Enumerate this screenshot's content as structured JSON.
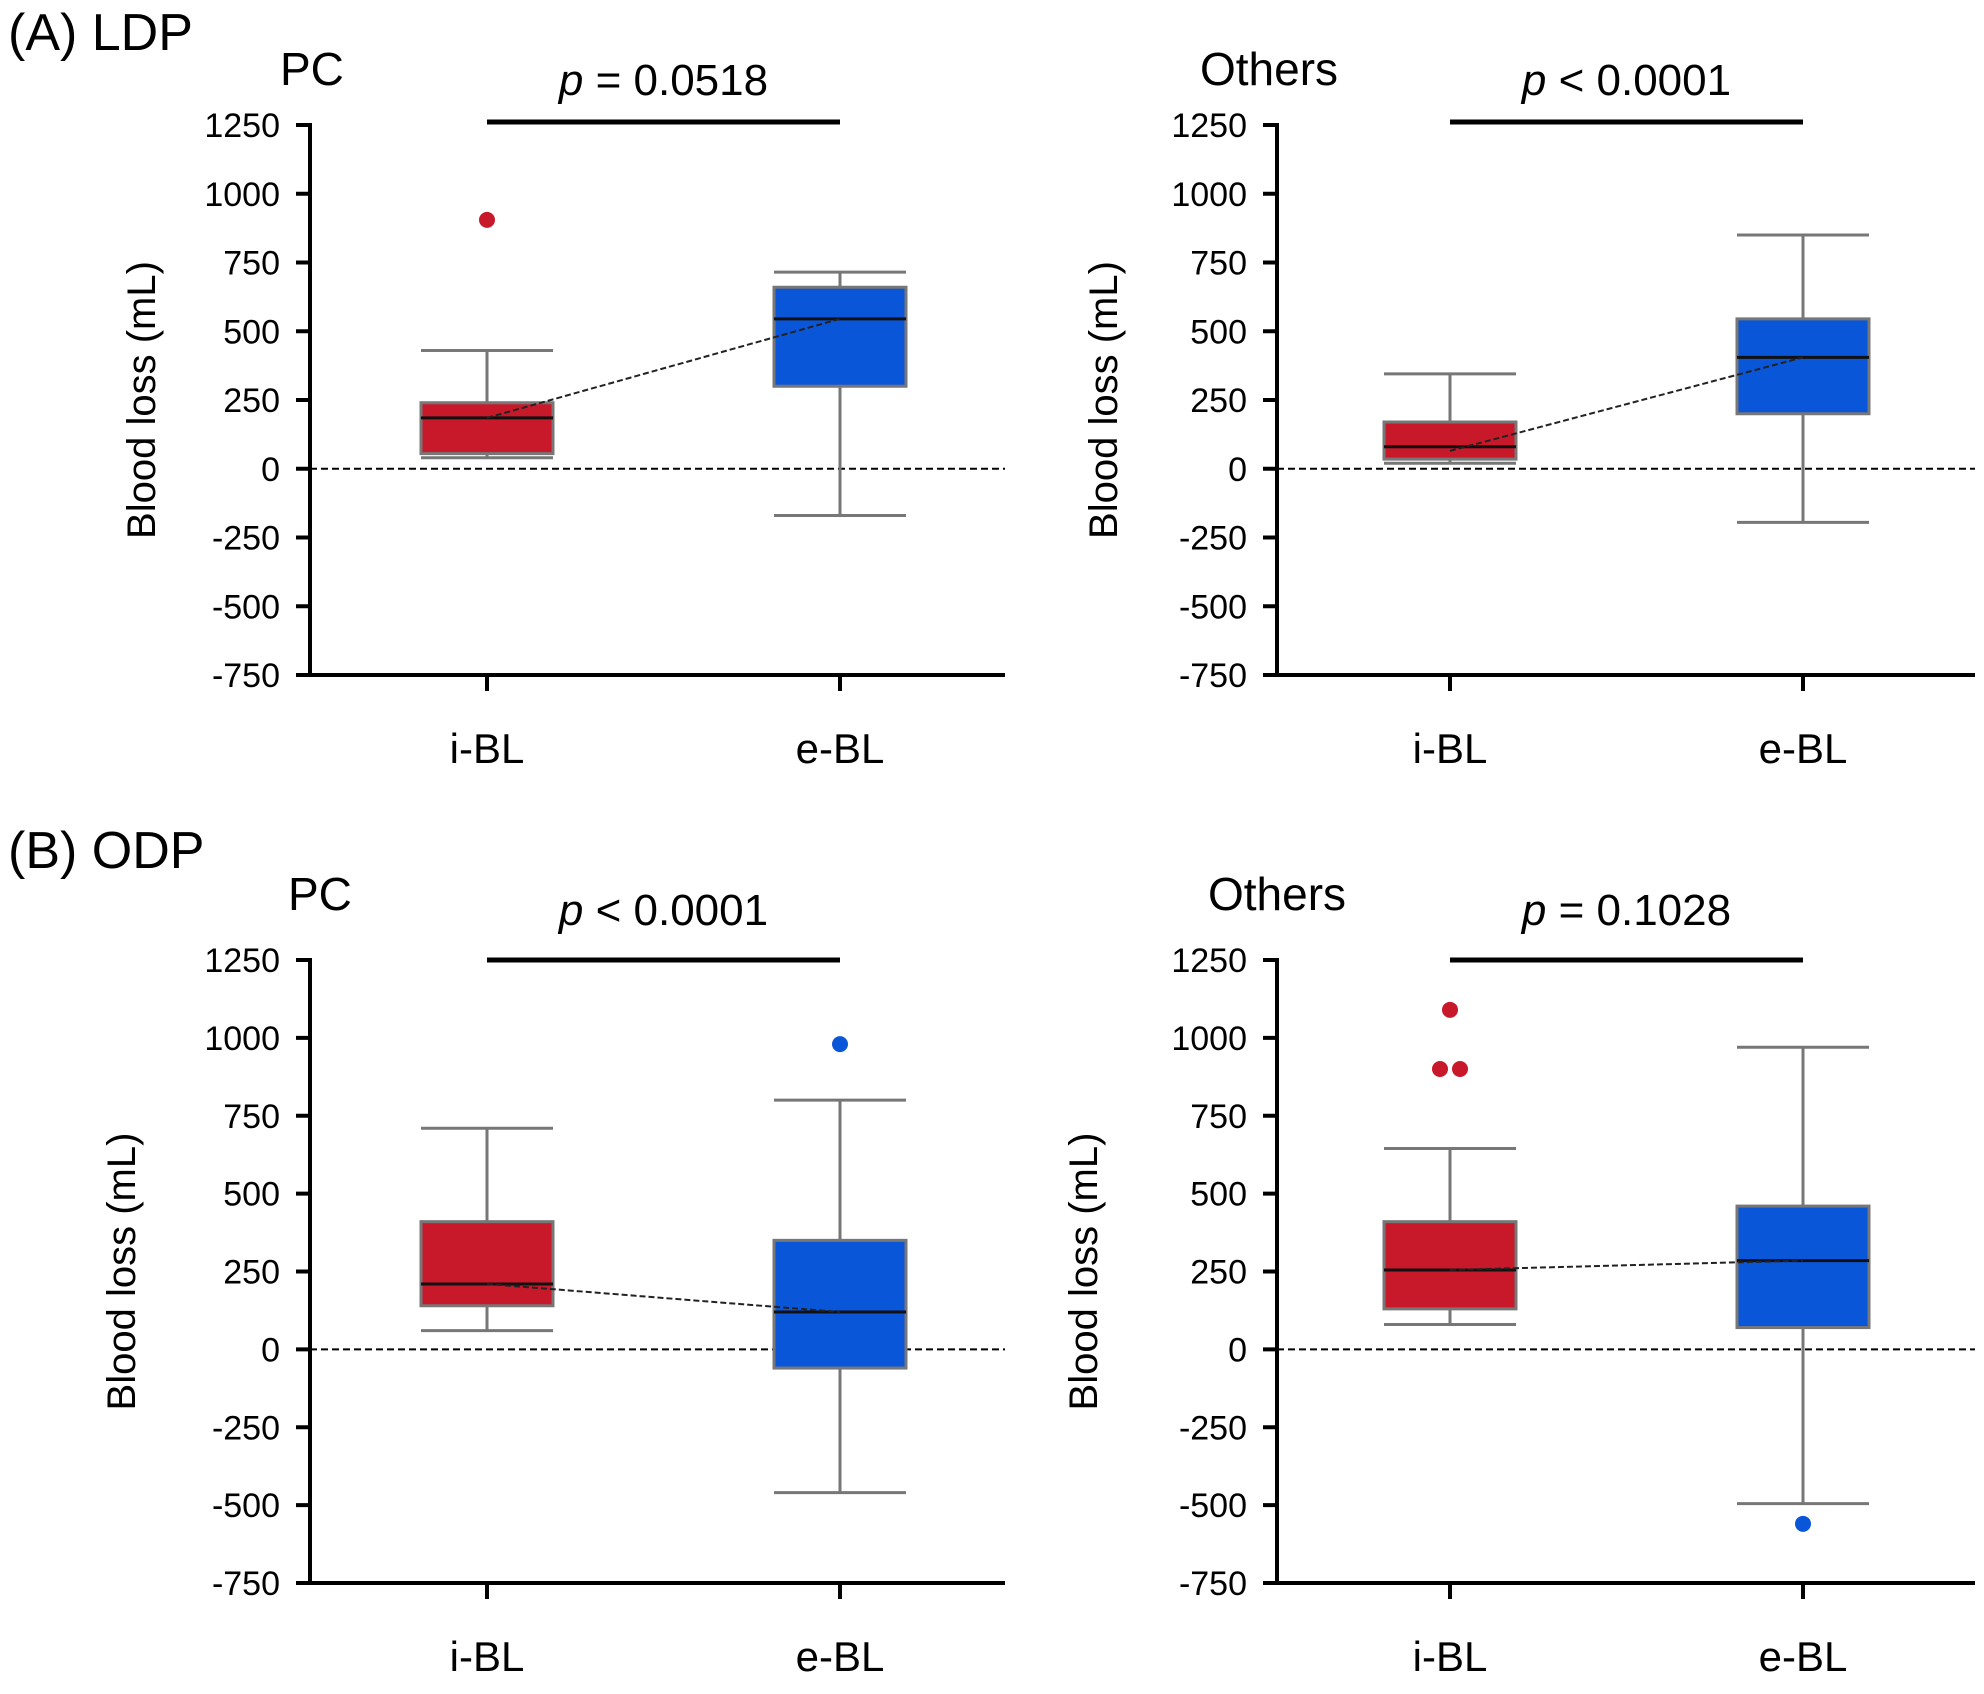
{
  "colors": {
    "ibl": "#c8192b",
    "ebl": "#0a56d9",
    "axis": "#000000",
    "whisker": "#777777"
  },
  "sections": [
    {
      "id": "A",
      "label": "(A) LDP"
    },
    {
      "id": "B",
      "label": "(B) ODP"
    }
  ],
  "chart_data": [
    {
      "type": "box",
      "section": "(A) LDP",
      "title": "PC",
      "p_label": "p",
      "p_value": "= 0.0518",
      "ylabel": "Blood loss (mL)",
      "ylim": [
        -750,
        1250
      ],
      "yticks": [
        "1250",
        "1000",
        "750",
        "500",
        "250",
        "0",
        "-250",
        "-500",
        "-750"
      ],
      "reference_line": 0,
      "categories": [
        "i-BL",
        "e-BL"
      ],
      "boxes": [
        {
          "name": "i-BL",
          "whisker_low": 40,
          "q1": 55,
          "median": 185,
          "q3": 240,
          "whisker_high": 430,
          "mean": 185,
          "outliers": [
            905
          ]
        },
        {
          "name": "e-BL",
          "whisker_low": -170,
          "q1": 300,
          "median": 545,
          "q3": 660,
          "whisker_high": 715,
          "mean": 545,
          "outliers": []
        }
      ]
    },
    {
      "type": "box",
      "section": "(A) LDP",
      "title": "Others",
      "p_label": "p",
      "p_value": "< 0.0001",
      "ylabel": "Blood loss (mL)",
      "ylim": [
        -750,
        1250
      ],
      "yticks": [
        "1250",
        "1000",
        "750",
        "500",
        "250",
        "0",
        "-250",
        "-500",
        "-750"
      ],
      "reference_line": 0,
      "categories": [
        "i-BL",
        "e-BL"
      ],
      "boxes": [
        {
          "name": "i-BL",
          "whisker_low": 20,
          "q1": 35,
          "median": 80,
          "q3": 170,
          "whisker_high": 345,
          "mean": 65,
          "outliers": []
        },
        {
          "name": "e-BL",
          "whisker_low": -195,
          "q1": 200,
          "median": 405,
          "q3": 545,
          "whisker_high": 850,
          "mean": 405,
          "outliers": []
        }
      ]
    },
    {
      "type": "box",
      "section": "(B) ODP",
      "title": "PC",
      "p_label": "p",
      "p_value": "< 0.0001",
      "ylabel": "Blood loss (mL)",
      "ylim": [
        -750,
        1250
      ],
      "yticks": [
        "1250",
        "1000",
        "750",
        "500",
        "250",
        "0",
        "-250",
        "-500",
        "-750"
      ],
      "reference_line": 0,
      "categories": [
        "i-BL",
        "e-BL"
      ],
      "boxes": [
        {
          "name": "i-BL",
          "whisker_low": 60,
          "q1": 140,
          "median": 210,
          "q3": 410,
          "whisker_high": 710,
          "mean": 210,
          "outliers": []
        },
        {
          "name": "e-BL",
          "whisker_low": -460,
          "q1": -60,
          "median": 120,
          "q3": 350,
          "whisker_high": 800,
          "mean": 120,
          "outliers": [
            980
          ]
        }
      ]
    },
    {
      "type": "box",
      "section": "(B) ODP",
      "title": "Others",
      "p_label": "p",
      "p_value": "= 0.1028",
      "ylabel": "Blood loss (mL)",
      "ylim": [
        -750,
        1250
      ],
      "yticks": [
        "1250",
        "1000",
        "750",
        "500",
        "250",
        "0",
        "-250",
        "-500",
        "-750"
      ],
      "reference_line": 0,
      "categories": [
        "i-BL",
        "e-BL"
      ],
      "boxes": [
        {
          "name": "i-BL",
          "whisker_low": 80,
          "q1": 130,
          "median": 255,
          "q3": 410,
          "whisker_high": 645,
          "mean": 255,
          "outliers": [
            1090,
            900,
            900
          ]
        },
        {
          "name": "e-BL",
          "whisker_low": -495,
          "q1": 70,
          "median": 285,
          "q3": 460,
          "whisker_high": 970,
          "mean": 285,
          "outliers": [
            -560
          ]
        }
      ]
    }
  ]
}
